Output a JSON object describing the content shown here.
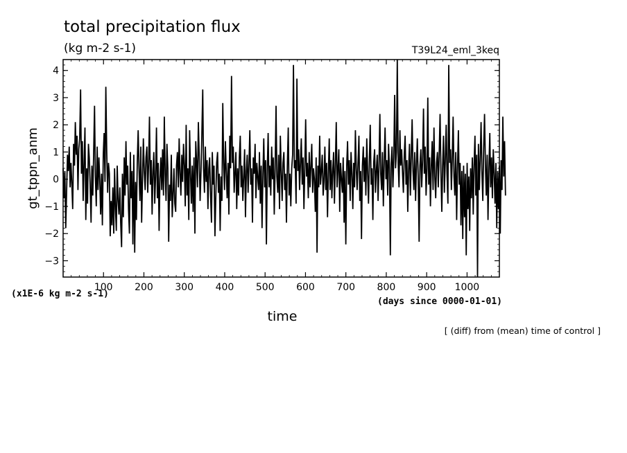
{
  "chart_data": {
    "type": "line",
    "title": "total precipitation flux",
    "units": "(kg m-2 s-1)",
    "experiment": "T39L24_eml_3keq",
    "ylabel": "gt_tppn_anm",
    "xlabel": "time",
    "x_units": "(days since 0000-01-01)",
    "y_scale_note": "(x1E-6 kg m-2 s-1)",
    "footnote": "[ (diff) from (mean) time of control ]",
    "xlim": [
      0,
      1080
    ],
    "ylim": [
      -3.6,
      4.4
    ],
    "x_ticks": [
      100,
      200,
      300,
      400,
      500,
      600,
      700,
      800,
      900,
      1000
    ],
    "x_tick_labels": [
      "100",
      "200",
      "300",
      "400",
      "500",
      "600",
      "700",
      "800",
      "900",
      "1000"
    ],
    "y_ticks": [
      -3,
      -2,
      -1,
      0,
      1,
      2,
      3,
      4
    ],
    "y_tick_labels": [
      "−3",
      "−2",
      "−1",
      "0",
      "1",
      "2",
      "3",
      "4"
    ],
    "x_step": 2.16,
    "series": [
      {
        "name": "gt_tppn_anm",
        "values": [
          0.4,
          -0.7,
          0.3,
          -1.8,
          -0.5,
          0.9,
          0.3,
          1.2,
          -0.3,
          0.6,
          -0.2,
          -1.1,
          1.3,
          0.5,
          2.1,
          0.9,
          1.6,
          -0.4,
          1.1,
          1.5,
          3.3,
          0.2,
          1.4,
          -0.8,
          0.6,
          1.9,
          -1.5,
          0.4,
          -0.9,
          1.3,
          0.8,
          -0.2,
          -1.6,
          0.5,
          -0.6,
          0.9,
          2.7,
          0.1,
          -1.0,
          1.2,
          -0.4,
          0.8,
          0.0,
          -1.3,
          0.2,
          -1.7,
          0.9,
          1.7,
          -0.1,
          3.4,
          1.0,
          -0.5,
          0.6,
          0.2,
          -2.1,
          -0.8,
          -1.7,
          -0.3,
          -2.0,
          0.4,
          -1.1,
          -1.9,
          0.5,
          -0.8,
          -1.3,
          -0.3,
          -1.6,
          -2.5,
          0.2,
          -1.4,
          0.8,
          -0.6,
          1.4,
          -0.2,
          0.5,
          -1.1,
          -2.0,
          1.0,
          -0.7,
          0.3,
          -2.4,
          0.9,
          -2.7,
          -0.1,
          -1.5,
          0.6,
          1.8,
          0.4,
          -0.8,
          1.2,
          -1.6,
          0.0,
          1.5,
          0.3,
          -0.4,
          0.8,
          1.2,
          -0.5,
          0.6,
          2.3,
          -0.2,
          0.7,
          -1.3,
          0.3,
          1.0,
          -0.9,
          0.1,
          1.9,
          -0.7,
          0.6,
          -1.9,
          0.0,
          0.8,
          -0.4,
          1.1,
          -0.6,
          2.3,
          0.2,
          -0.8,
          1.3,
          0.4,
          -2.3,
          -0.2,
          -0.8,
          0.9,
          -1.4,
          -0.6,
          0.4,
          -0.9,
          -1.2,
          0.5,
          1.0,
          -0.3,
          1.5,
          0.2,
          -0.6,
          0.9,
          -0.1,
          1.3,
          0.5,
          -1.0,
          2.0,
          -0.6,
          0.4,
          -1.5,
          1.8,
          0.2,
          -0.9,
          0.5,
          -1.2,
          0.8,
          -2.0,
          1.4,
          0.6,
          -0.3,
          2.1,
          0.9,
          -0.8,
          0.3,
          1.6,
          3.3,
          0.4,
          -0.5,
          1.2,
          -0.1,
          0.7,
          -1.1,
          0.4,
          0.8,
          -0.6,
          -1.6,
          1.0,
          -0.2,
          0.5,
          -2.1,
          -0.7,
          0.6,
          1.0,
          -0.5,
          0.2,
          -1.9,
          0.1,
          -0.8,
          2.8,
          0.6,
          -0.4,
          1.4,
          0.3,
          -0.7,
          0.6,
          -1.3,
          1.6,
          0.4,
          3.8,
          0.6,
          1.2,
          -0.5,
          0.2,
          1.0,
          -1.1,
          0.4,
          -0.6,
          0.8,
          1.6,
          -0.3,
          0.5,
          -0.8,
          0.1,
          1.1,
          -1.4,
          0.3,
          0.9,
          -0.5,
          0.6,
          1.8,
          -0.2,
          0.4,
          -1.6,
          0.8,
          0.2,
          1.3,
          -0.7,
          0.6,
          0.1,
          -0.4,
          1.0,
          -0.9,
          0.5,
          -1.8,
          0.2,
          1.5,
          -0.3,
          0.7,
          -2.4,
          0.4,
          1.7,
          -0.3,
          0.5,
          -0.6,
          1.2,
          0.0,
          0.8,
          -1.3,
          0.4,
          2.7,
          0.1,
          -0.5,
          0.9,
          -1.1,
          1.6,
          0.3,
          -0.8,
          0.6,
          1.0,
          -0.4,
          0.2,
          -1.6,
          0.5,
          1.9,
          -0.6,
          0.2,
          -1.0,
          0.4,
          0.9,
          4.2,
          0.4,
          0.7,
          -0.9,
          3.7,
          0.3,
          1.1,
          -0.4,
          0.6,
          1.5,
          -0.2,
          0.8,
          -1.1,
          0.4,
          2.2,
          0.1,
          0.6,
          -0.7,
          1.0,
          -0.3,
          0.5,
          1.3,
          -0.5,
          0.4,
          0.0,
          -1.2,
          0.8,
          -2.7,
          0.5,
          -0.3,
          1.6,
          -0.2,
          0.3,
          0.9,
          -0.6,
          -0.1,
          1.2,
          -0.4,
          0.6,
          -1.4,
          0.2,
          1.5,
          -0.4,
          0.7,
          -0.7,
          0.3,
          1.0,
          -0.9,
          0.5,
          2.1,
          -0.3,
          0.4,
          1.1,
          -1.2,
          0.6,
          0.0,
          -0.5,
          0.8,
          -1.6,
          0.3,
          -2.4,
          0.5,
          1.4,
          -0.2,
          0.7,
          -0.8,
          1.0,
          0.2,
          -1.1,
          0.6,
          -0.3,
          1.8,
          0.4,
          -0.4,
          0.6,
          1.6,
          -0.8,
          0.3,
          -2.2,
          0.5,
          1.2,
          -0.1,
          0.8,
          -0.6,
          1.5,
          0.3,
          -0.9,
          0.7,
          2.0,
          -0.2,
          0.4,
          -1.5,
          0.6,
          1.1,
          -0.5,
          0.3,
          0.9,
          -0.8,
          0.5,
          2.4,
          0.2,
          -0.4,
          1.0,
          -1.0,
          0.6,
          1.9,
          0.0,
          0.7,
          -0.6,
          1.3,
          0.4,
          -2.8,
          0.6,
          1.2,
          -0.3,
          0.8,
          3.1,
          0.4,
          1.0,
          4.4,
          0.6,
          -0.3,
          1.8,
          0.5,
          1.1,
          0.2,
          -0.5,
          0.9,
          1.6,
          -0.2,
          0.7,
          -1.2,
          0.4,
          1.3,
          -0.6,
          0.8,
          2.2,
          0.3,
          -0.4,
          1.0,
          -0.8,
          0.6,
          1.5,
          0.0,
          -2.3,
          0.5,
          1.1,
          -0.3,
          0.7,
          2.6,
          0.2,
          1.2,
          -0.6,
          0.4,
          3.0,
          -0.2,
          0.8,
          -1.0,
          0.5,
          1.4,
          -0.4,
          1.9,
          0.1,
          -0.7,
          0.6,
          1.0,
          -0.3,
          0.9,
          2.4,
          0.3,
          -1.2,
          0.5,
          1.6,
          -0.5,
          0.7,
          2.0,
          0.2,
          -0.9,
          4.2,
          0.6,
          1.1,
          -0.4,
          0.8,
          2.3,
          0.1,
          -0.6,
          1.0,
          -1.5,
          0.4,
          1.8,
          -0.2,
          0.6,
          -1.7,
          0.3,
          -2.2,
          0.5,
          -1.4,
          0.2,
          -2.8,
          0.6,
          -1.1,
          0.1,
          -1.9,
          0.4,
          -0.7,
          0.8,
          -1.3,
          0.5,
          1.6,
          -0.6,
          0.9,
          -3.6,
          1.3,
          -0.4,
          0.7,
          2.1,
          0.3,
          -0.8,
          1.2,
          2.4,
          0.5,
          -0.6,
          0.9,
          -1.5,
          0.4,
          1.7,
          -0.3,
          0.8,
          -0.7,
          1.1,
          0.2,
          -0.9,
          0.6,
          -1.8,
          0.3,
          -1.1,
          0.5,
          -2.0,
          0.7,
          -0.4,
          2.3,
          0.1,
          1.4,
          -0.6
        ]
      }
    ]
  }
}
